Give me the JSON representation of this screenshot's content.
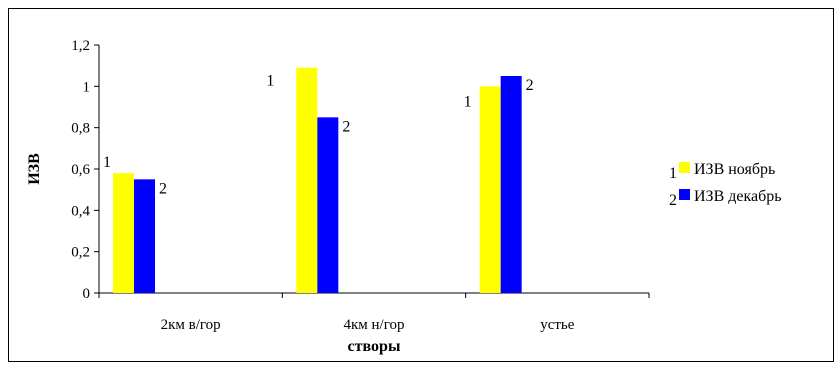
{
  "chart_data": {
    "type": "bar",
    "categories": [
      "2км в/гор",
      "4км н/гор",
      "устье"
    ],
    "series": [
      {
        "name": "ИЗВ ноябрь",
        "marker": "1",
        "color": "#FFFF00",
        "values": [
          0.58,
          1.09,
          1.0
        ]
      },
      {
        "name": "ИЗВ декабрь",
        "marker": "2",
        "color": "#0000FF",
        "values": [
          0.55,
          0.85,
          1.05
        ]
      }
    ],
    "xlabel": "створы",
    "ylabel": "ИЗВ",
    "ylim": [
      0,
      1.2
    ],
    "yticks": [
      "0",
      "0,2",
      "0,4",
      "0,6",
      "0,8",
      "1",
      "1,2"
    ],
    "grid": false,
    "legend": "right"
  }
}
